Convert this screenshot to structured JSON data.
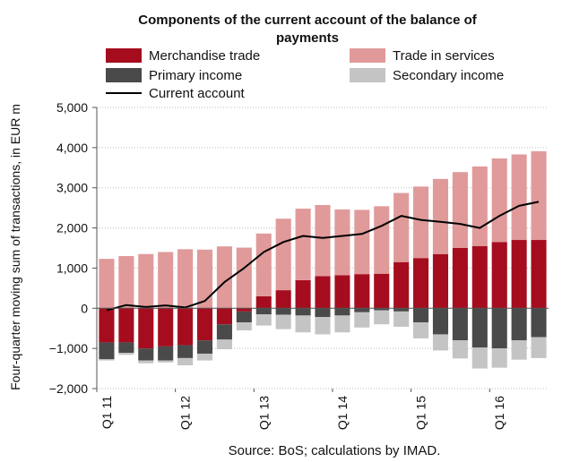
{
  "chart_data": {
    "type": "bar",
    "stacked": true,
    "title": "Components of the current account of the balance of payments",
    "ylabel": "Four-quarter moving sum of transactions, in EUR m",
    "source": "Source: BoS; calculations by IMAD.",
    "ylim": [
      -2000,
      5000
    ],
    "yticks": [
      -2000,
      -1000,
      0,
      1000,
      2000,
      3000,
      4000,
      5000
    ],
    "ytick_labels": [
      "−2,000",
      "−1,000",
      "0",
      "1,000",
      "2,000",
      "3,000",
      "4,000",
      "5,000"
    ],
    "grid": true,
    "legend": "top",
    "x_tick_labels": [
      {
        "index": 0,
        "label": "Q1 11"
      },
      {
        "index": 4,
        "label": "Q1 12"
      },
      {
        "index": 8,
        "label": "Q1 13"
      },
      {
        "index": 12,
        "label": "Q1 14"
      },
      {
        "index": 16,
        "label": "Q1 15"
      },
      {
        "index": 20,
        "label": "Q1 16"
      }
    ],
    "periods": 23,
    "series": [
      {
        "name": "Merchandise trade",
        "type": "bar",
        "color": "#a50d1e",
        "values": [
          -850,
          -850,
          -1000,
          -950,
          -920,
          -800,
          -400,
          -80,
          300,
          450,
          700,
          800,
          820,
          850,
          860,
          1150,
          1250,
          1350,
          1500,
          1550,
          1650,
          1700,
          1700
        ]
      },
      {
        "name": "Trade in services",
        "type": "bar",
        "color": "#e09a9a",
        "values": [
          1230,
          1300,
          1350,
          1400,
          1470,
          1460,
          1540,
          1510,
          1560,
          1780,
          1780,
          1770,
          1640,
          1600,
          1680,
          1720,
          1780,
          1870,
          1890,
          1980,
          2080,
          2130,
          2210
        ]
      },
      {
        "name": "Primary income",
        "type": "bar",
        "color": "#4a4a4a",
        "values": [
          -420,
          -260,
          -300,
          -350,
          -320,
          -330,
          -380,
          -270,
          -150,
          -160,
          -180,
          -220,
          -180,
          -100,
          -50,
          -80,
          -350,
          -650,
          -800,
          -980,
          -1000,
          -800,
          -720
        ]
      },
      {
        "name": "Secondary income",
        "type": "bar",
        "color": "#c4c4c4",
        "values": [
          -30,
          -50,
          -70,
          -50,
          -180,
          -170,
          -240,
          -200,
          -280,
          -360,
          -420,
          -430,
          -420,
          -380,
          -350,
          -380,
          -400,
          -400,
          -450,
          -520,
          -480,
          -480,
          -520
        ]
      },
      {
        "name": "Current account",
        "type": "line",
        "color": "#000000",
        "values": [
          -50,
          80,
          30,
          70,
          20,
          180,
          650,
          1000,
          1400,
          1650,
          1800,
          1750,
          1800,
          1850,
          2050,
          2300,
          2200,
          2150,
          2100,
          2000,
          2300,
          2550,
          2650
        ]
      }
    ]
  }
}
